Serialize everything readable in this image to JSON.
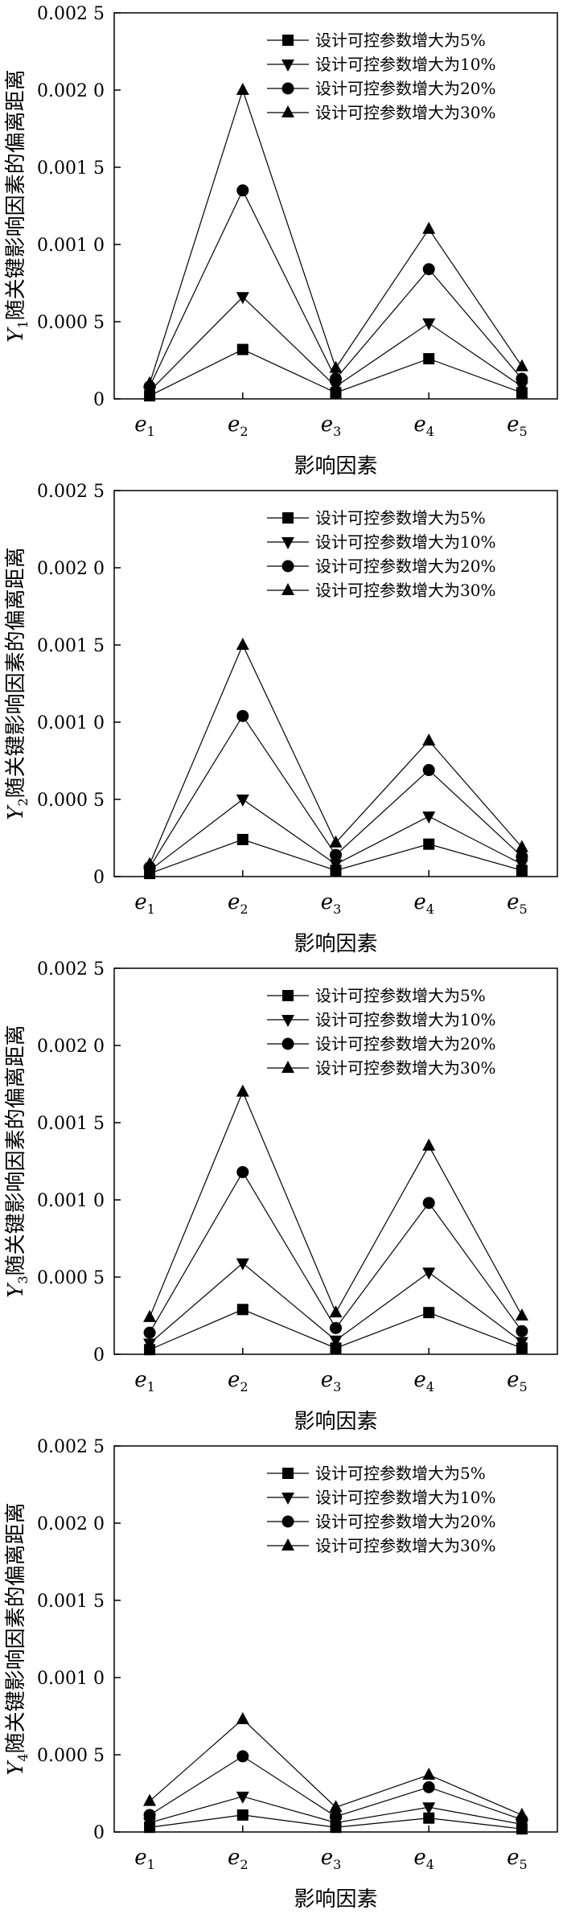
{
  "chart_data": [
    {
      "type": "line",
      "ylabel_var": "Y",
      "ylabel_sub": "1",
      "ylabel_rest": "随关键影响因素的偏离距离",
      "xlabel": "影响因素",
      "categories": [
        "e",
        "e",
        "e",
        "e",
        "e"
      ],
      "category_subs": [
        "1",
        "2",
        "3",
        "4",
        "5"
      ],
      "yticks": [
        "0.002 5",
        "0.002 0",
        "0.001 5",
        "0.001 0",
        "0.000 5",
        "0"
      ],
      "ylim": [
        0,
        0.0025
      ],
      "legend_position": "top-right",
      "series": [
        {
          "name": "设计可控参数增大为5%",
          "marker": "square",
          "values": [
            2e-05,
            0.00032,
            4e-05,
            0.00026,
            4e-05
          ]
        },
        {
          "name": "设计可控参数增大为10%",
          "marker": "triangle-down",
          "values": [
            5e-05,
            0.00066,
            8e-05,
            0.00049,
            8e-05
          ]
        },
        {
          "name": "设计可控参数增大为20%",
          "marker": "circle",
          "values": [
            8e-05,
            0.00135,
            0.00013,
            0.00084,
            0.00013
          ]
        },
        {
          "name": "设计可控参数增大为30%",
          "marker": "triangle-up",
          "values": [
            0.0001,
            0.002,
            0.0002,
            0.0011,
            0.00021
          ]
        }
      ]
    },
    {
      "type": "line",
      "ylabel_var": "Y",
      "ylabel_sub": "2",
      "ylabel_rest": "随关键影响因素的偏离距离",
      "xlabel": "影响因素",
      "categories": [
        "e",
        "e",
        "e",
        "e",
        "e"
      ],
      "category_subs": [
        "1",
        "2",
        "3",
        "4",
        "5"
      ],
      "yticks": [
        "0.002 5",
        "0.002 0",
        "0.001 5",
        "0.001 0",
        "0.000 5",
        "0"
      ],
      "ylim": [
        0,
        0.0025
      ],
      "legend_position": "top-right",
      "series": [
        {
          "name": "设计可控参数增大为5%",
          "marker": "square",
          "values": [
            2e-05,
            0.00024,
            4e-05,
            0.00021,
            4e-05
          ]
        },
        {
          "name": "设计可控参数增大为10%",
          "marker": "triangle-down",
          "values": [
            4e-05,
            0.0005,
            8e-05,
            0.00039,
            8e-05
          ]
        },
        {
          "name": "设计可控参数增大为20%",
          "marker": "circle",
          "values": [
            6e-05,
            0.00104,
            0.00014,
            0.00069,
            0.00013
          ]
        },
        {
          "name": "设计可控参数增大为30%",
          "marker": "triangle-up",
          "values": [
            8e-05,
            0.0015,
            0.00022,
            0.00088,
            0.00019
          ]
        }
      ]
    },
    {
      "type": "line",
      "ylabel_var": "Y",
      "ylabel_sub": "3",
      "ylabel_rest": "随关键影响因素的偏离距离",
      "xlabel": "影响因素",
      "categories": [
        "e",
        "e",
        "e",
        "e",
        "e"
      ],
      "category_subs": [
        "1",
        "2",
        "3",
        "4",
        "5"
      ],
      "yticks": [
        "0.002 5",
        "0.002 0",
        "0.001 5",
        "0.001 0",
        "0.000 5",
        "0"
      ],
      "ylim": [
        0,
        0.0025
      ],
      "legend_position": "top-right",
      "series": [
        {
          "name": "设计可控参数增大为5%",
          "marker": "square",
          "values": [
            3e-05,
            0.00029,
            4e-05,
            0.00027,
            4e-05
          ]
        },
        {
          "name": "设计可控参数增大为10%",
          "marker": "triangle-down",
          "values": [
            7e-05,
            0.00059,
            9e-05,
            0.00053,
            8e-05
          ]
        },
        {
          "name": "设计可控参数增大为20%",
          "marker": "circle",
          "values": [
            0.00014,
            0.00118,
            0.00017,
            0.00098,
            0.00015
          ]
        },
        {
          "name": "设计可控参数增大为30%",
          "marker": "triangle-up",
          "values": [
            0.00024,
            0.0017,
            0.00027,
            0.00135,
            0.00025
          ]
        }
      ]
    },
    {
      "type": "line",
      "ylabel_var": "Y",
      "ylabel_sub": "4",
      "ylabel_rest": "随关键影响因素的偏离距离",
      "xlabel": "影响因素",
      "categories": [
        "e",
        "e",
        "e",
        "e",
        "e"
      ],
      "category_subs": [
        "1",
        "2",
        "3",
        "4",
        "5"
      ],
      "yticks": [
        "0.002 5",
        "0.002 0",
        "0.001 5",
        "0.001 0",
        "0.000 5",
        "0"
      ],
      "ylim": [
        0,
        0.0025
      ],
      "legend_position": "top-right",
      "series": [
        {
          "name": "设计可控参数增大为5%",
          "marker": "square",
          "values": [
            3e-05,
            0.00011,
            3e-05,
            9e-05,
            2e-05
          ]
        },
        {
          "name": "设计可控参数增大为10%",
          "marker": "triangle-down",
          "values": [
            6e-05,
            0.00023,
            6e-05,
            0.00016,
            5e-05
          ]
        },
        {
          "name": "设计可控参数增大为20%",
          "marker": "circle",
          "values": [
            0.00011,
            0.00049,
            0.0001,
            0.00029,
            8e-05
          ]
        },
        {
          "name": "设计可控参数增大为30%",
          "marker": "triangle-up",
          "values": [
            0.0002,
            0.00073,
            0.00016,
            0.00037,
            0.00011
          ]
        }
      ]
    }
  ]
}
